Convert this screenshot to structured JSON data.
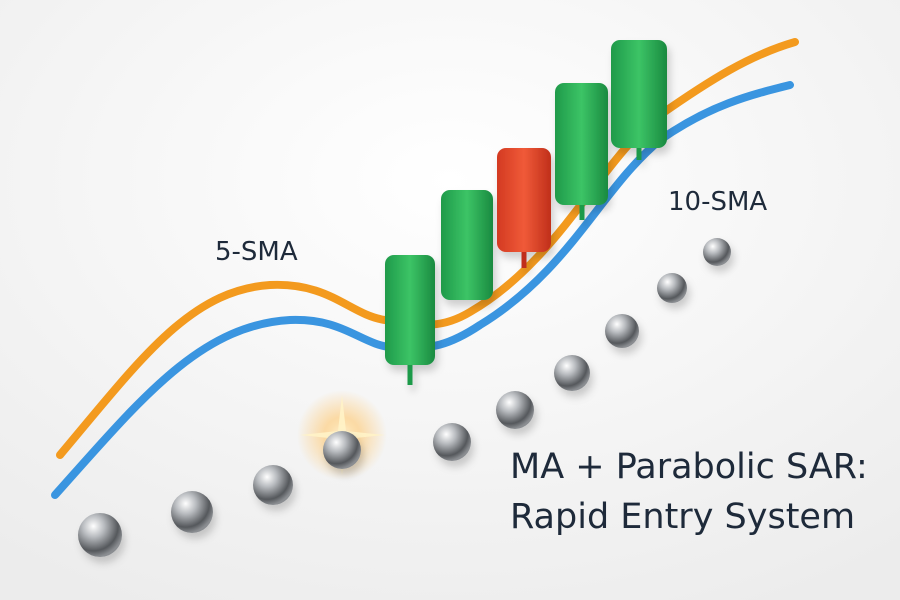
{
  "labels": {
    "sma5": "5-SMA",
    "sma10": "10-SMA"
  },
  "title": {
    "line1": "MA + Parabolic SAR:",
    "line2": "Rapid Entry System"
  }
}
